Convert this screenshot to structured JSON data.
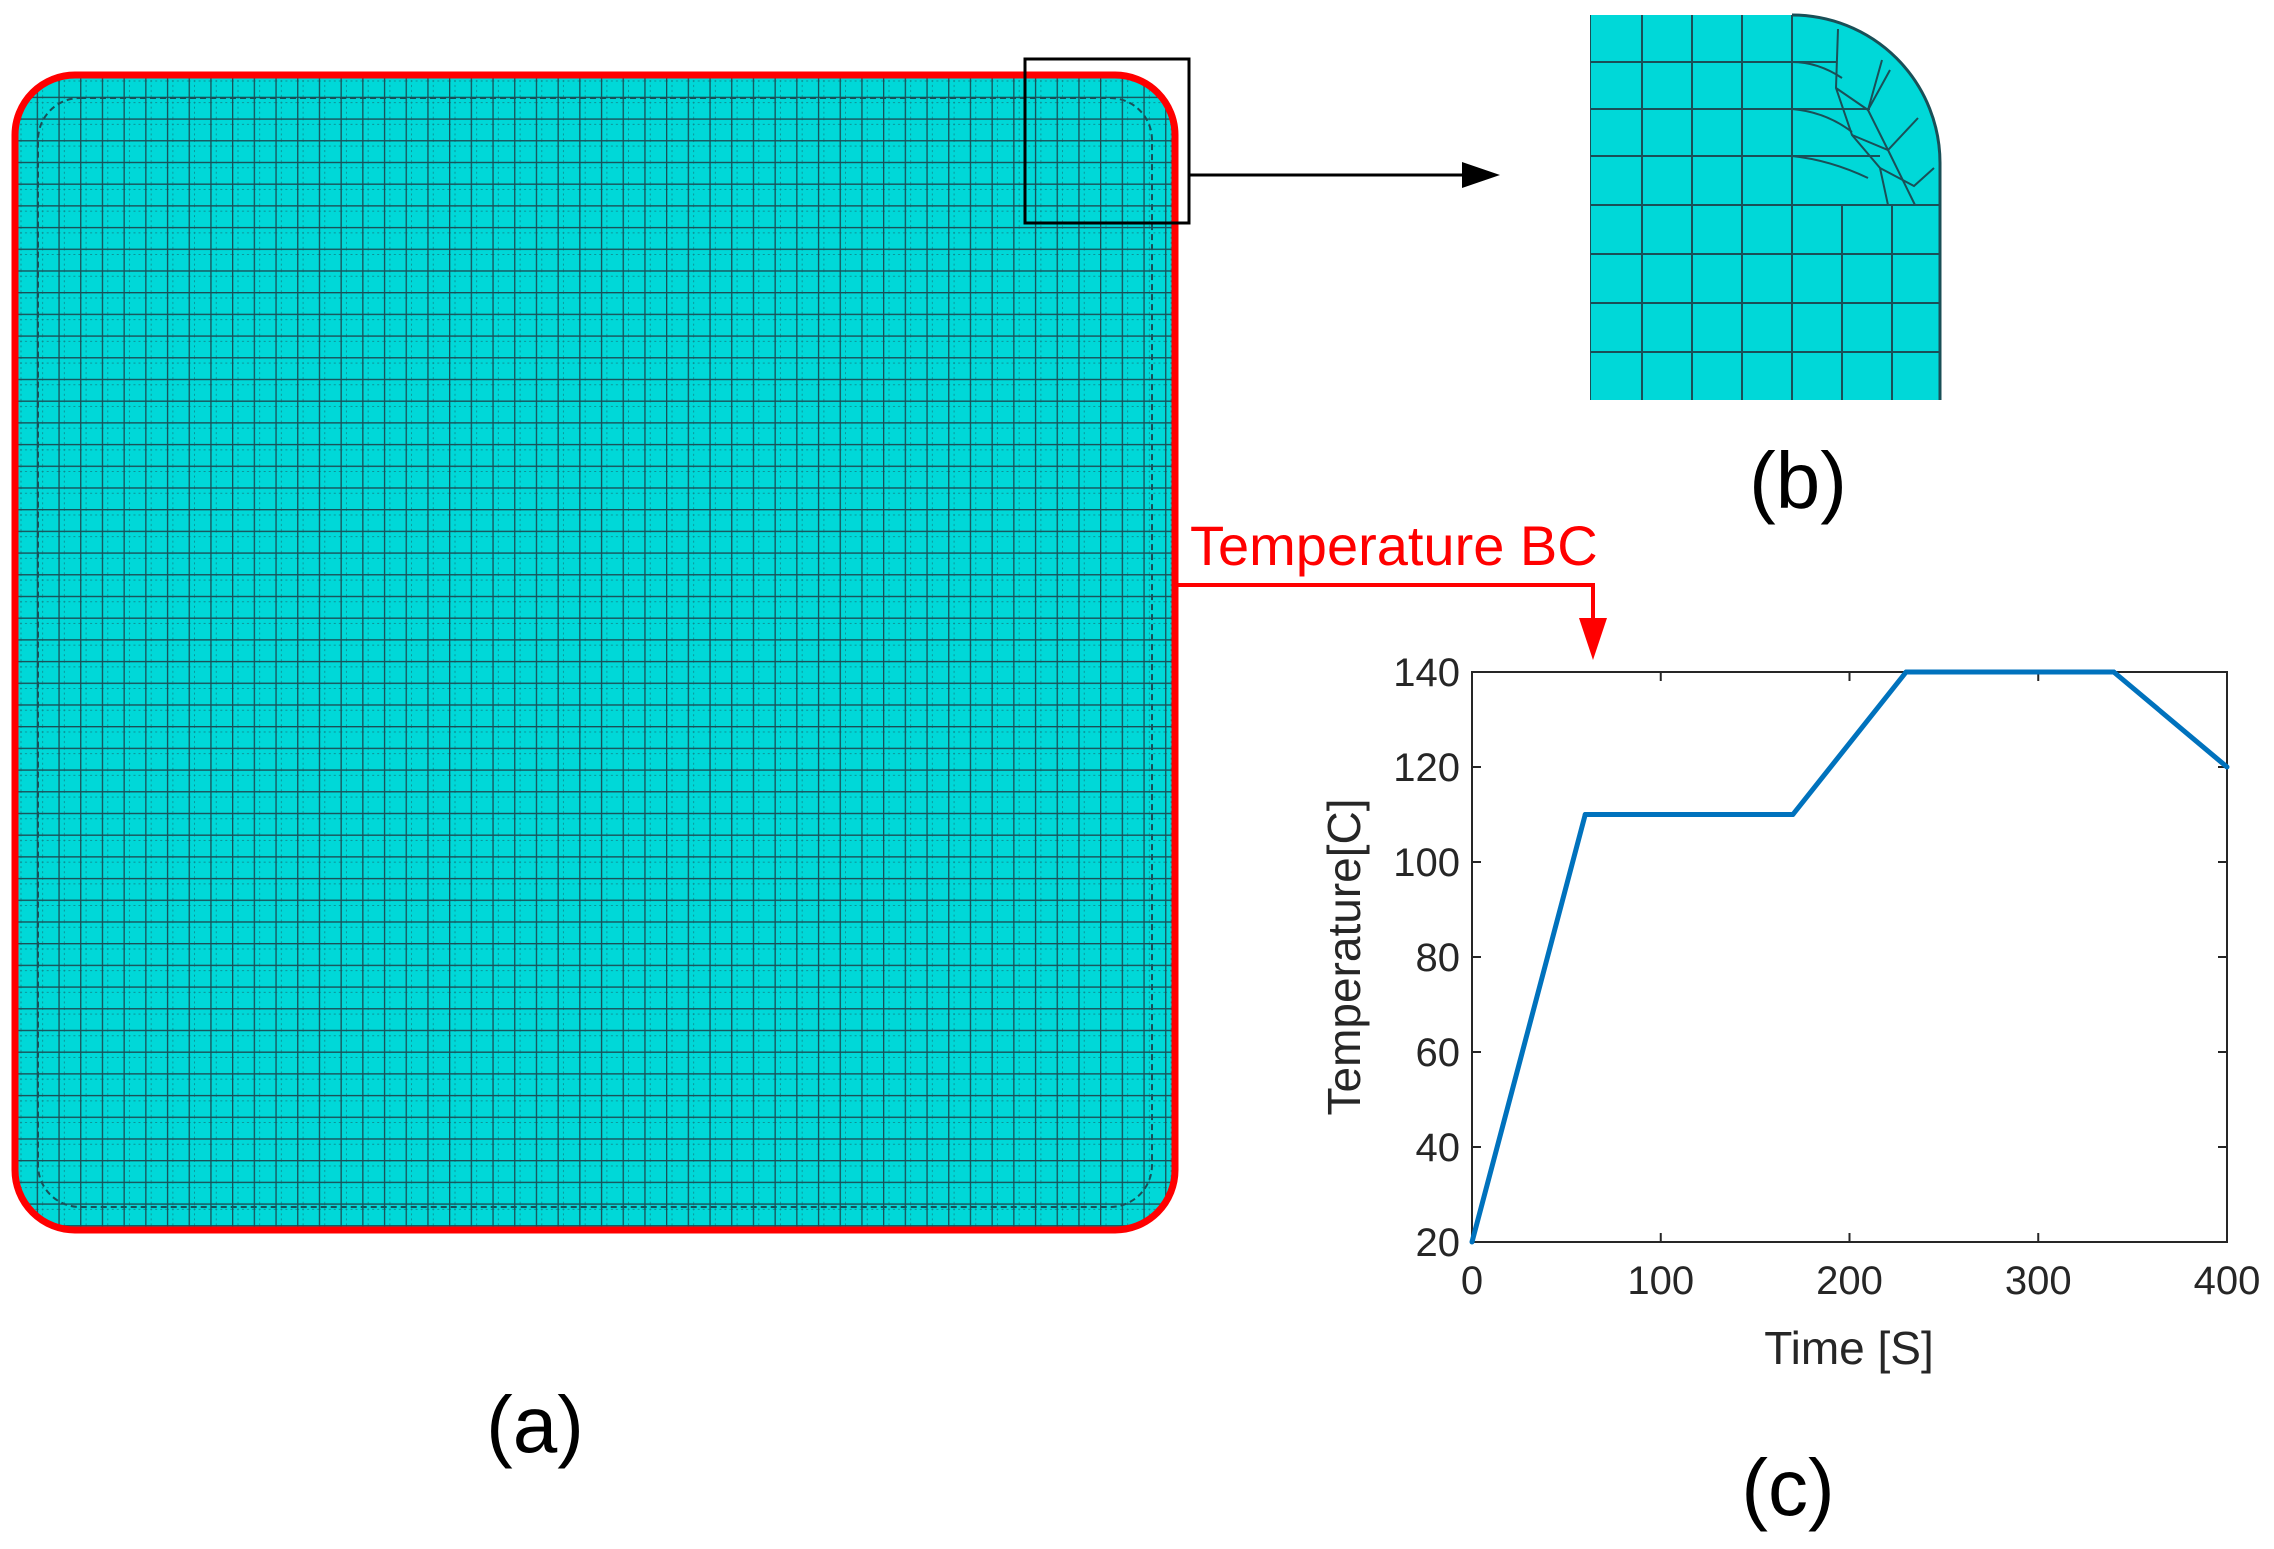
{
  "panels": {
    "a_label": "(a)",
    "b_label": "(b)",
    "c_label": "(c)"
  },
  "colors": {
    "mesh_fill": "#00D8D8",
    "mesh_line": "#1a4f57",
    "boundary": "#ff0000",
    "series": "#0072BD",
    "axis": "#262626"
  },
  "annotation": {
    "bc_label": "Temperature BC"
  },
  "chart_data": {
    "type": "line",
    "xlabel": "Time [S]",
    "ylabel": "Temperature[C]",
    "xlim": [
      0,
      400
    ],
    "ylim": [
      20,
      140
    ],
    "xticks": [
      0,
      100,
      200,
      300,
      400
    ],
    "yticks": [
      20,
      40,
      60,
      80,
      100,
      120,
      140
    ],
    "series": [
      {
        "name": "Temperature BC",
        "x": [
          0,
          60,
          170,
          230,
          340,
          400
        ],
        "y": [
          20,
          110,
          110,
          140,
          140,
          120
        ]
      }
    ]
  }
}
